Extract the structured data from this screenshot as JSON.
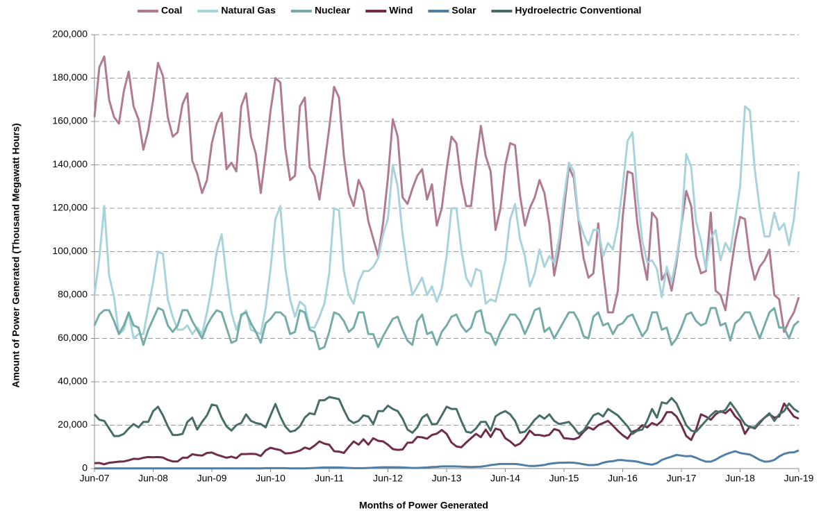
{
  "chart_data": {
    "type": "line",
    "y_label": "Amount  of Power Generated (Thousand Megawatt Hours)",
    "x_label": "Months of Power Generated",
    "categories": [
      "Jun-07",
      null,
      null,
      null,
      null,
      null,
      null,
      null,
      null,
      null,
      null,
      null,
      "Jun-08",
      null,
      null,
      null,
      null,
      null,
      null,
      null,
      null,
      null,
      null,
      null,
      "Jun-09",
      null,
      null,
      null,
      null,
      null,
      null,
      null,
      null,
      null,
      null,
      null,
      "Jun-10",
      null,
      null,
      null,
      null,
      null,
      null,
      null,
      null,
      null,
      null,
      null,
      "Jun-11",
      null,
      null,
      null,
      null,
      null,
      null,
      null,
      null,
      null,
      null,
      null,
      "Jun-12",
      null,
      null,
      null,
      null,
      null,
      null,
      null,
      null,
      null,
      null,
      null,
      "Jun-13",
      null,
      null,
      null,
      null,
      null,
      null,
      null,
      null,
      null,
      null,
      null,
      "Jun-14",
      null,
      null,
      null,
      null,
      null,
      null,
      null,
      null,
      null,
      null,
      null,
      "Jun-15",
      null,
      null,
      null,
      null,
      null,
      null,
      null,
      null,
      null,
      null,
      null,
      "Jun-16",
      null,
      null,
      null,
      null,
      null,
      null,
      null,
      null,
      null,
      null,
      null,
      "Jun-17",
      null,
      null,
      null,
      null,
      null,
      null,
      null,
      null,
      null,
      null,
      null,
      "Jun-18",
      null,
      null,
      null,
      null,
      null,
      null,
      null,
      null,
      null,
      null,
      null,
      "Jun-19"
    ],
    "ylim": [
      0,
      200000
    ],
    "yticks": [
      0,
      {
        "value": 20000,
        "label": "20,000"
      },
      {
        "value": 40000,
        "label": "40,000"
      },
      {
        "value": 60000,
        "label": "60,000"
      },
      {
        "value": 80000,
        "label": "80,000"
      },
      {
        "value": 100000,
        "label": "100,000"
      },
      {
        "value": 120000,
        "label": "120,000"
      },
      {
        "value": 140000,
        "label": "140,000"
      },
      {
        "value": 160000,
        "label": "160,000"
      },
      {
        "value": 180000,
        "label": "180,000"
      },
      {
        "value": 200000,
        "label": "200,000"
      }
    ],
    "grid": true,
    "legend": "top",
    "series": [
      {
        "name": "Coal",
        "color": "#b07a93",
        "values": [
          162000,
          185000,
          190000,
          170000,
          162000,
          159000,
          174000,
          183000,
          167000,
          161000,
          147000,
          156000,
          170000,
          187000,
          181000,
          162000,
          153000,
          155000,
          168000,
          173000,
          142000,
          136000,
          127000,
          133000,
          150000,
          159000,
          164000,
          138000,
          141000,
          137000,
          167000,
          173000,
          153000,
          145000,
          127000,
          145000,
          165000,
          180000,
          178000,
          148000,
          133000,
          135000,
          167000,
          171000,
          139000,
          135000,
          124000,
          140000,
          157000,
          176000,
          171000,
          144000,
          127000,
          121000,
          133000,
          128000,
          114000,
          106000,
          98000,
          113000,
          134000,
          161000,
          153000,
          125000,
          122000,
          129000,
          135000,
          138000,
          124000,
          131000,
          112000,
          120000,
          138000,
          153000,
          150000,
          132000,
          121000,
          121000,
          141000,
          158000,
          144000,
          137000,
          110000,
          120000,
          140000,
          150000,
          149000,
          126000,
          112000,
          120000,
          125000,
          133000,
          127000,
          113000,
          89000,
          101000,
          120000,
          139000,
          134000,
          114000,
          97000,
          88000,
          90000,
          113000,
          91000,
          72000,
          72000,
          82000,
          116000,
          137000,
          136000,
          113000,
          98000,
          87000,
          118000,
          115000,
          87000,
          91000,
          82000,
          95000,
          112000,
          128000,
          121000,
          98000,
          90000,
          91000,
          118000,
          82000,
          80000,
          73000,
          90000,
          105000,
          116000,
          115000,
          97000,
          87000,
          93000,
          96000,
          101000,
          80000,
          78000,
          63000,
          68000,
          72000,
          79000
        ]
      },
      {
        "name": "Natural Gas",
        "color": "#a8d3dc",
        "values": [
          80000,
          97000,
          121000,
          89000,
          79000,
          62000,
          64000,
          72000,
          60000,
          62000,
          62000,
          74000,
          86000,
          100000,
          99000,
          78000,
          70000,
          64000,
          64000,
          66000,
          62000,
          65000,
          62000,
          72000,
          84000,
          100000,
          108000,
          88000,
          72000,
          64000,
          70000,
          73000,
          64000,
          63000,
          62000,
          74000,
          92000,
          115000,
          121000,
          93000,
          78000,
          70000,
          77000,
          75000,
          65000,
          65000,
          70000,
          76000,
          90000,
          120000,
          119000,
          91000,
          80000,
          76000,
          86000,
          91000,
          91000,
          93000,
          97000,
          108000,
          115000,
          140000,
          130000,
          108000,
          92000,
          80000,
          84000,
          88000,
          80000,
          84000,
          77000,
          83000,
          98000,
          120000,
          120000,
          101000,
          88000,
          84000,
          92000,
          91000,
          76000,
          78000,
          77000,
          86000,
          96000,
          115000,
          122000,
          106000,
          98000,
          84000,
          90000,
          101000,
          93000,
          98000,
          95000,
          106000,
          125000,
          141000,
          137000,
          115000,
          108000,
          103000,
          110000,
          110000,
          98000,
          104000,
          101000,
          112000,
          130000,
          151000,
          155000,
          126000,
          105000,
          95000,
          96000,
          92000,
          79000,
          93000,
          86000,
          97000,
          112000,
          145000,
          139000,
          114000,
          105000,
          92000,
          106000,
          110000,
          96000,
          104000,
          100000,
          115000,
          130000,
          167000,
          165000,
          138000,
          120000,
          107000,
          107000,
          118000,
          110000,
          113000,
          103000,
          115000,
          137000
        ]
      },
      {
        "name": "Nuclear",
        "color": "#76aca8",
        "values": [
          66000,
          71000,
          73000,
          73000,
          68000,
          62000,
          66000,
          72000,
          66000,
          65000,
          57000,
          64000,
          69000,
          74000,
          73000,
          66000,
          63000,
          66000,
          73000,
          73000,
          68000,
          64000,
          60000,
          66000,
          70000,
          73000,
          72000,
          65000,
          58000,
          59000,
          71000,
          72000,
          67000,
          63000,
          58000,
          67000,
          69000,
          72000,
          72000,
          70000,
          62000,
          63000,
          73000,
          72000,
          64000,
          63000,
          55000,
          56000,
          63000,
          72000,
          71000,
          68000,
          63000,
          65000,
          72000,
          72000,
          62000,
          62000,
          56000,
          61000,
          65000,
          69000,
          70000,
          64000,
          59000,
          57000,
          68000,
          71000,
          62000,
          63000,
          57000,
          63000,
          66000,
          70000,
          71000,
          66000,
          63000,
          65000,
          72000,
          73000,
          63000,
          62000,
          57000,
          63000,
          67000,
          71000,
          71000,
          68000,
          62000,
          67000,
          73000,
          74000,
          63000,
          65000,
          60000,
          64000,
          68000,
          72000,
          72000,
          68000,
          61000,
          60000,
          70000,
          72000,
          66000,
          67000,
          62000,
          66000,
          67000,
          70000,
          71000,
          66000,
          61000,
          64000,
          72000,
          72000,
          64000,
          65000,
          57000,
          60000,
          65000,
          71000,
          72000,
          68000,
          66000,
          67000,
          74000,
          74000,
          66000,
          67000,
          59000,
          67000,
          69000,
          72000,
          72000,
          66000,
          60000,
          66000,
          72000,
          74000,
          65000,
          65000,
          60000,
          66000,
          68000
        ]
      },
      {
        "name": "Wind",
        "color": "#6e2e4a",
        "values": [
          2500,
          2600,
          2000,
          2700,
          2900,
          3200,
          3300,
          3800,
          4500,
          4400,
          5000,
          5300,
          5200,
          5300,
          5100,
          4000,
          3300,
          3300,
          5000,
          5000,
          6600,
          6200,
          6000,
          7200,
          7400,
          6400,
          5700,
          5000,
          5500,
          4800,
          6700,
          6700,
          6800,
          6700,
          5800,
          8400,
          9600,
          9000,
          8500,
          7000,
          7100,
          7600,
          8300,
          9700,
          9000,
          10600,
          12500,
          11500,
          11000,
          8000,
          7800,
          7200,
          10000,
          12500,
          11000,
          13500,
          11000,
          14000,
          12800,
          12500,
          11000,
          9000,
          8600,
          8800,
          11900,
          12000,
          14600,
          14400,
          13800,
          15500,
          16100,
          17800,
          16000,
          12000,
          10200,
          9800,
          12000,
          14000,
          16000,
          14500,
          18000,
          14600,
          18400,
          17800,
          14000,
          12500,
          10500,
          11500,
          14000,
          17500,
          15500,
          15500,
          15000,
          15600,
          18200,
          17500,
          14000,
          13800,
          13500,
          14300,
          17000,
          19000,
          18000,
          20000,
          21000,
          22000,
          19800,
          17400,
          15400,
          13800,
          17000,
          17800,
          20000,
          19000,
          21000,
          20000,
          22000,
          26000,
          26000,
          24000,
          20000,
          15000,
          13200,
          18000,
          25000,
          24000,
          22500,
          25000,
          26500,
          25500,
          27500,
          24000,
          22000,
          16000,
          19500,
          18500,
          21000,
          23500,
          25000,
          23500,
          24000,
          30000,
          27000,
          24000,
          23000
        ]
      },
      {
        "name": "Solar",
        "color": "#4f7fa4",
        "values": [
          100,
          100,
          100,
          100,
          100,
          100,
          100,
          100,
          100,
          100,
          100,
          100,
          100,
          100,
          100,
          100,
          100,
          100,
          100,
          100,
          100,
          100,
          100,
          100,
          100,
          100,
          100,
          100,
          100,
          100,
          100,
          100,
          100,
          100,
          100,
          200,
          200,
          200,
          200,
          200,
          100,
          100,
          100,
          100,
          200,
          300,
          400,
          500,
          500,
          500,
          500,
          400,
          300,
          200,
          200,
          200,
          300,
          400,
          500,
          600,
          600,
          600,
          600,
          500,
          400,
          300,
          300,
          400,
          500,
          700,
          800,
          1000,
          1000,
          1000,
          1000,
          900,
          800,
          700,
          800,
          900,
          1200,
          1600,
          1900,
          2100,
          2100,
          2100,
          2100,
          1900,
          1500,
          1200,
          1200,
          1400,
          1700,
          2200,
          2500,
          2700,
          2700,
          2800,
          2700,
          2400,
          2000,
          1600,
          1600,
          1900,
          2700,
          3200,
          3400,
          3900,
          3900,
          3600,
          3500,
          3200,
          2600,
          2100,
          1800,
          2500,
          4000,
          4800,
          5500,
          6300,
          6000,
          5700,
          5800,
          5000,
          4000,
          3200,
          3200,
          4100,
          5400,
          6500,
          7300,
          8000,
          7200,
          6800,
          6500,
          5300,
          4000,
          3200,
          3300,
          4000,
          5600,
          6800,
          7400,
          7500,
          8400
        ]
      },
      {
        "name": "Hydroelectric Conventional",
        "color": "#466d68",
        "values": [
          25000,
          22500,
          22000,
          18500,
          15000,
          15000,
          16000,
          18500,
          20500,
          19000,
          21500,
          21500,
          26500,
          28500,
          24500,
          19500,
          15500,
          15500,
          16000,
          21500,
          23500,
          18000,
          21500,
          24500,
          29500,
          29000,
          23500,
          19500,
          17500,
          20000,
          21000,
          25000,
          22000,
          21000,
          20500,
          19000,
          24500,
          29800,
          24000,
          19500,
          17000,
          17500,
          19500,
          23500,
          25500,
          25000,
          31500,
          31500,
          33000,
          32500,
          32000,
          27000,
          22500,
          21000,
          22000,
          24500,
          24000,
          20500,
          26500,
          26500,
          29000,
          27500,
          26500,
          23000,
          18000,
          16500,
          19000,
          23500,
          25000,
          20500,
          20500,
          24500,
          28500,
          27500,
          27500,
          22000,
          17000,
          16500,
          18500,
          21500,
          21500,
          17500,
          24000,
          25500,
          26500,
          25000,
          22000,
          16500,
          17000,
          19500,
          22500,
          24500,
          23000,
          25000,
          22000,
          20500,
          21000,
          21500,
          19000,
          16000,
          17500,
          21000,
          24500,
          25500,
          24000,
          27500,
          26000,
          24500,
          22000,
          19500,
          16000,
          17500,
          18000,
          22000,
          27500,
          23500,
          30500,
          30000,
          32500,
          30000,
          25000,
          20000,
          17500,
          17000,
          19500,
          22000,
          24500,
          26500,
          26000,
          27000,
          30500,
          27500,
          24000,
          20500,
          19000,
          19000,
          21500,
          23500,
          25500,
          22000,
          25000,
          26500,
          30000,
          27500,
          26000
        ]
      }
    ]
  }
}
